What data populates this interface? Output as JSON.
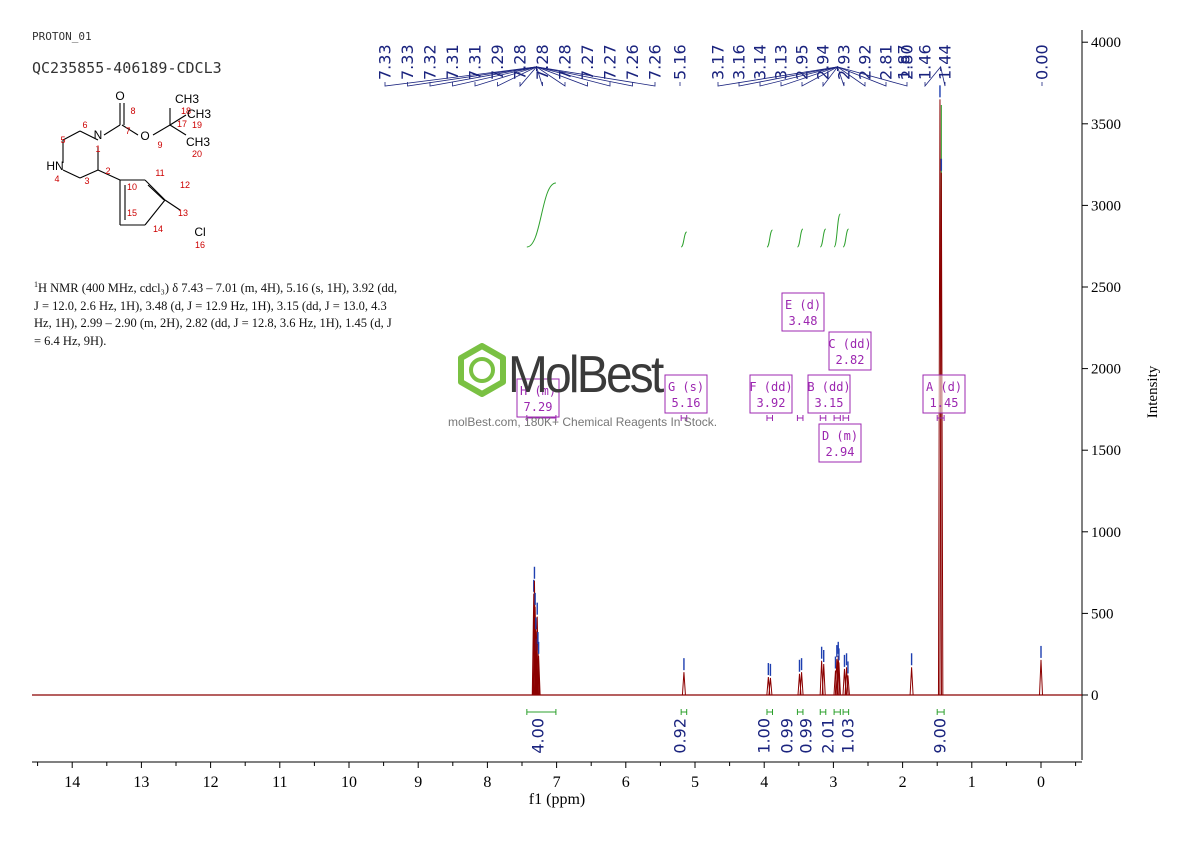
{
  "header": {
    "experiment": "PROTON_01",
    "sample": "QC235855-406189-CDCL3"
  },
  "nmr_text": {
    "nucleus_sup": "1",
    "line1": "H NMR (400 MHz, cdcl₃) δ 7.43 – 7.01 (m, 4H), 5.16 (s, 1H), 3.92 (dd,",
    "line2": "J = 12.0, 2.6 Hz, 1H), 3.48 (d, J = 12.9 Hz, 1H), 3.15 (dd, J = 13.0, 4.3",
    "line3": "Hz, 1H), 2.99 – 2.90 (m, 2H), 2.82 (dd, J = 12.8, 3.6 Hz, 1H), 1.45 (d, J",
    "line4": "= 6.4 Hz, 9H)."
  },
  "molecule": {
    "atoms": [
      "O",
      "8",
      "7",
      "O",
      "9",
      "N",
      "1",
      "CH3",
      "18",
      "17",
      "CH3",
      "19",
      "CH3",
      "20",
      "5",
      "6",
      "2",
      "11",
      "12",
      "HN",
      "4",
      "3",
      "10",
      "13",
      "15",
      "14",
      "Cl",
      "16"
    ]
  },
  "watermark": {
    "brand": "MolBest",
    "tagline": "molBest.com, 180K+ Chemical Reagents In Stock."
  },
  "colors": {
    "spectrum": "#8b0000",
    "integral": "#2ca02c",
    "peak_label": "#1a237e",
    "multiplet": "#9c27b0",
    "structure_number": "#cc0000",
    "logo_green": "#7ac143"
  },
  "chart_data": {
    "type": "line",
    "xlabel": "f1 (ppm)",
    "ylabel": "Intensity",
    "xlim": [
      14.5,
      -0.6
    ],
    "ylim": [
      -400,
      4100
    ],
    "x_ticks": [
      14,
      13,
      12,
      11,
      10,
      9,
      8,
      7,
      6,
      5,
      4,
      3,
      2,
      1,
      0
    ],
    "y_ticks": [
      0,
      500,
      1000,
      1500,
      2000,
      2500,
      3000,
      3500,
      4000
    ],
    "y_tick_labels": [
      "0",
      "500",
      "1000",
      "1500",
      "2000",
      "2500",
      "3000",
      "3500",
      "4000"
    ],
    "peaks": [
      {
        "ppm": 7.33,
        "height": 620
      },
      {
        "ppm": 7.32,
        "height": 700
      },
      {
        "ppm": 7.31,
        "height": 540
      },
      {
        "ppm": 7.3,
        "height": 390
      },
      {
        "ppm": 7.29,
        "height": 260
      },
      {
        "ppm": 7.28,
        "height": 480
      },
      {
        "ppm": 7.27,
        "height": 300
      },
      {
        "ppm": 7.26,
        "height": 240
      },
      {
        "ppm": 5.16,
        "height": 140
      },
      {
        "ppm": 3.94,
        "height": 110
      },
      {
        "ppm": 3.91,
        "height": 105
      },
      {
        "ppm": 3.49,
        "height": 130
      },
      {
        "ppm": 3.46,
        "height": 140
      },
      {
        "ppm": 3.17,
        "height": 210
      },
      {
        "ppm": 3.14,
        "height": 190
      },
      {
        "ppm": 2.97,
        "height": 150
      },
      {
        "ppm": 2.95,
        "height": 220
      },
      {
        "ppm": 2.93,
        "height": 240
      },
      {
        "ppm": 2.92,
        "height": 200
      },
      {
        "ppm": 2.84,
        "height": 160
      },
      {
        "ppm": 2.81,
        "height": 170
      },
      {
        "ppm": 2.79,
        "height": 120
      },
      {
        "ppm": 1.87,
        "height": 170
      },
      {
        "ppm": 1.46,
        "height": 3650
      },
      {
        "ppm": 1.44,
        "height": 3200
      },
      {
        "ppm": 0.0,
        "height": 215
      }
    ],
    "peak_labels_group1": [
      "7.33",
      "7.33",
      "7.32",
      "7.31",
      "7.31",
      "7.29",
      "7.28",
      "7.28",
      "7.28",
      "7.27",
      "7.27",
      "7.26",
      "7.26"
    ],
    "peak_labels_group1_anchor": 7.29,
    "peak_label_516": "5.16",
    "peak_labels_group2": [
      "3.17",
      "3.16",
      "3.14",
      "3.13",
      "2.95",
      "2.94",
      "2.93",
      "2.92",
      "2.81",
      "2.80"
    ],
    "peak_labels_group2_anchor": 2.94,
    "peak_label_187": "1.87",
    "peak_labels_group3": [
      "1.46",
      "1.44"
    ],
    "peak_labels_group3_anchor": 1.45,
    "peak_label_000": "0.00",
    "multiplets": [
      {
        "letter": "H",
        "type": "(m)",
        "shift": "7.29"
      },
      {
        "letter": "G",
        "type": "(s)",
        "shift": "5.16"
      },
      {
        "letter": "F",
        "type": "(dd)",
        "shift": "3.92"
      },
      {
        "letter": "E",
        "type": "(d)",
        "shift": "3.48"
      },
      {
        "letter": "B",
        "type": "(dd)",
        "shift": "3.15"
      },
      {
        "letter": "D",
        "type": "(m)",
        "shift": "2.94"
      },
      {
        "letter": "C",
        "type": "(dd)",
        "shift": "2.82"
      },
      {
        "letter": "A",
        "type": "(d)",
        "shift": "1.45"
      }
    ],
    "integrals": [
      {
        "from": 7.43,
        "to": 7.01,
        "value": "4.00"
      },
      {
        "from": 5.2,
        "to": 5.12,
        "value": "0.92"
      },
      {
        "from": 3.96,
        "to": 3.88,
        "value": "1.00"
      },
      {
        "from": 3.52,
        "to": 3.44,
        "value": "0.99"
      },
      {
        "from": 3.19,
        "to": 3.11,
        "value": "0.99"
      },
      {
        "from": 2.99,
        "to": 2.9,
        "value": "2.01"
      },
      {
        "from": 2.86,
        "to": 2.78,
        "value": "1.03"
      },
      {
        "from": 1.5,
        "to": 1.4,
        "value": "9.00"
      }
    ]
  }
}
